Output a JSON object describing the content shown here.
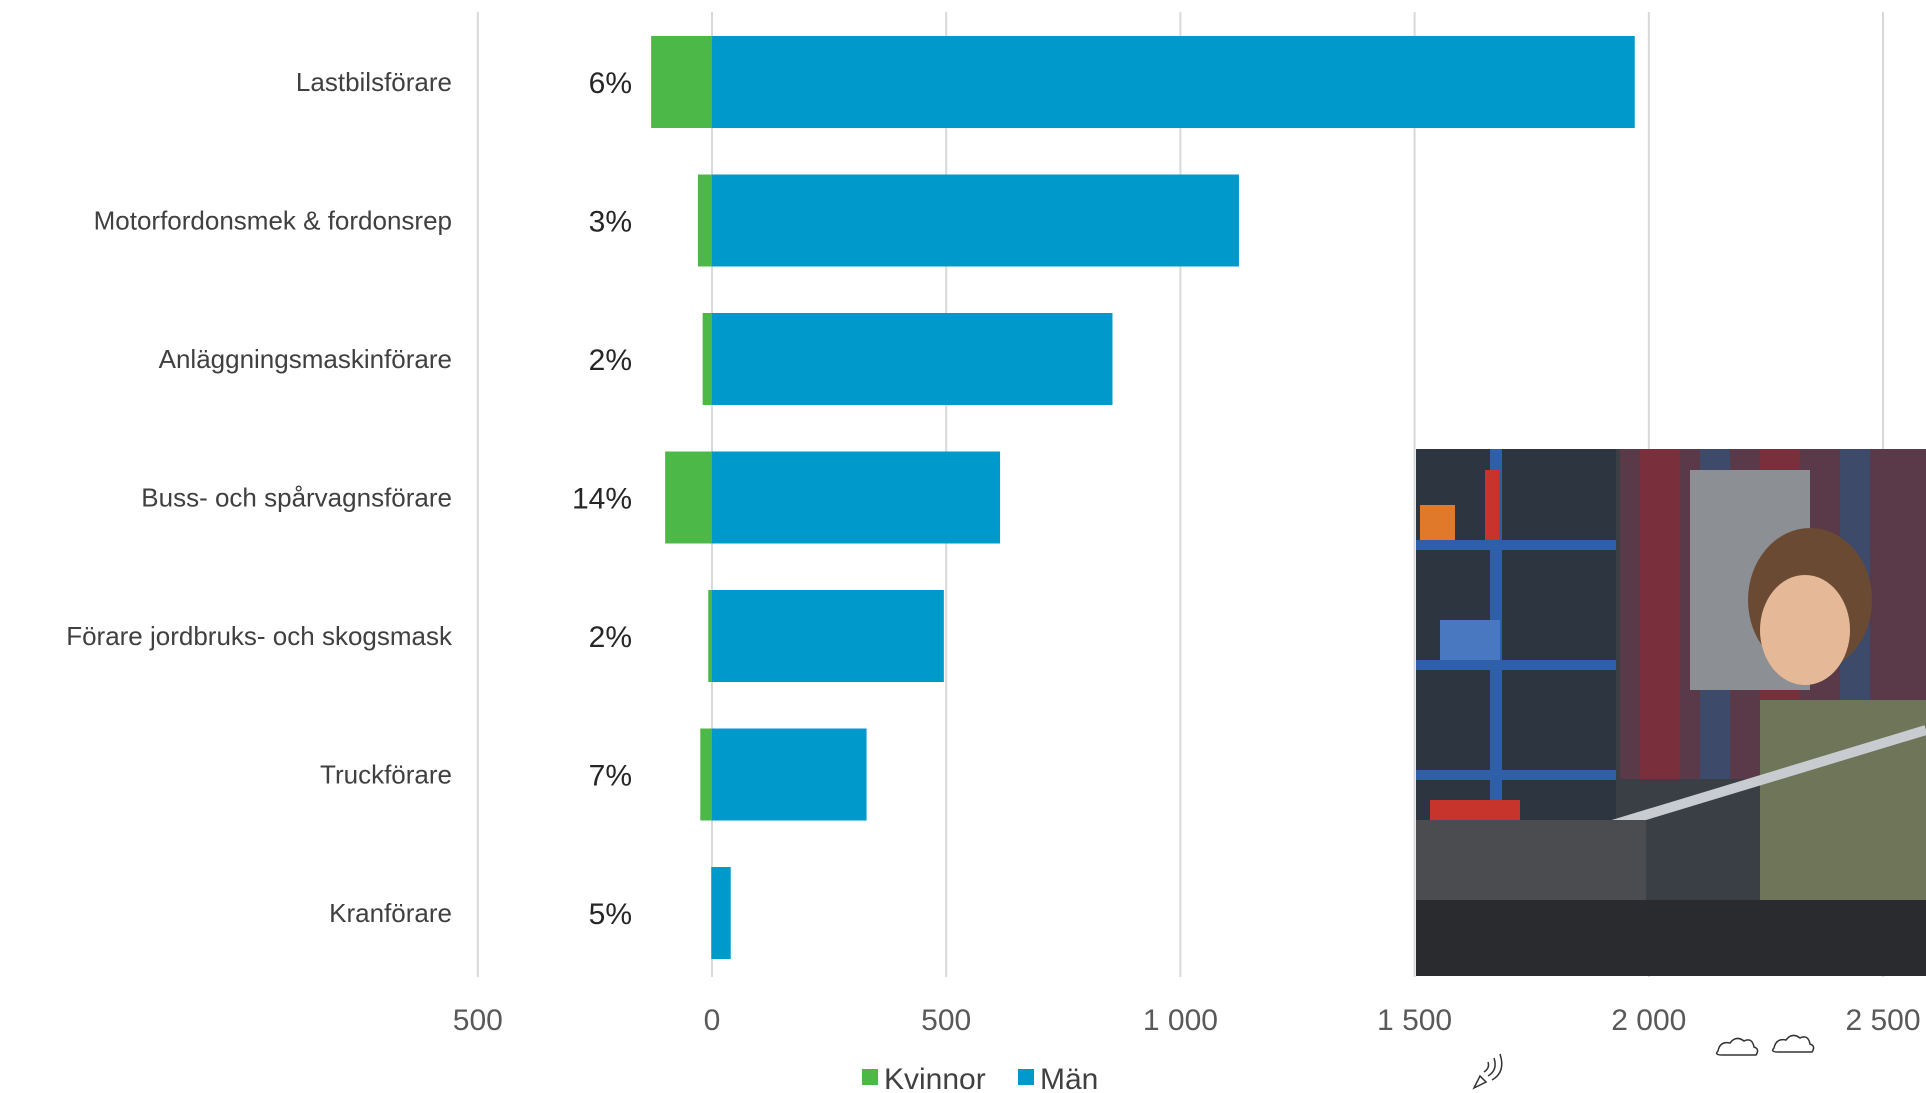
{
  "colors": {
    "women": "#4cb848",
    "men": "#0099cc",
    "grid": "#d9d9d9",
    "label": "#404040"
  },
  "legend": {
    "women_label": "Kvinnor",
    "men_label": "Män"
  },
  "chart_data": {
    "type": "bar",
    "orientation": "horizontal",
    "stacked": "diverging",
    "categories": [
      "Lastbilsförare",
      "Motorfordonsmek & fordonsrep",
      "Anläggningsmaskinförare",
      "Buss- och spårvagnsförare",
      "Förare jordbruks- och skogsmask",
      "Truckförare",
      "Kranförare"
    ],
    "series": [
      {
        "name": "Kvinnor",
        "values": [
          -130,
          -30,
          -20,
          -100,
          -8,
          -25,
          -2
        ]
      },
      {
        "name": "Män",
        "values": [
          1970,
          1125,
          855,
          615,
          495,
          330,
          40
        ]
      }
    ],
    "data_labels": [
      "6%",
      "3%",
      "2%",
      "14%",
      "2%",
      "7%",
      "5%"
    ],
    "xlim": [
      -500,
      2500
    ],
    "xticks": [
      -500,
      0,
      500,
      1000,
      1500,
      2000,
      2500
    ],
    "xtick_labels": [
      "500",
      "0",
      "500",
      "1 000",
      "1 500",
      "2 000",
      "2 500"
    ],
    "grid": true,
    "legend_position": "bottom"
  },
  "photo": {
    "icon": "mechanic-photo"
  }
}
